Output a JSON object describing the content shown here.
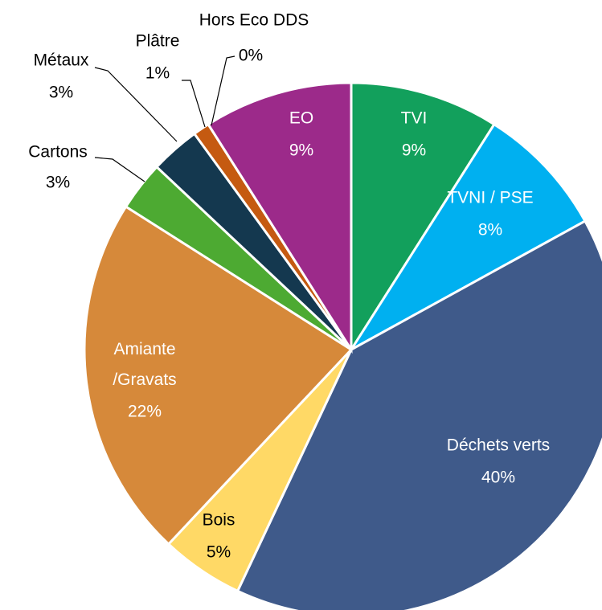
{
  "chart_data": {
    "type": "pie",
    "categories": [
      "TVI",
      "TVNI / PSE",
      "Déchets verts",
      "Bois",
      "Amiante\n/Gravats",
      "Cartons",
      "Métaux",
      "Plâtre",
      "Hors Eco DDS",
      "EO"
    ],
    "values": [
      9,
      8,
      40,
      5,
      22,
      3,
      3,
      1,
      0,
      9
    ],
    "value_labels": [
      "9%",
      "8%",
      "40%",
      "5%",
      "22%",
      "3%",
      "3%",
      "1%",
      "0%",
      "9%"
    ],
    "colors": [
      "#12a05c",
      "#00b0f0",
      "#3f5a8a",
      "#ffd966",
      "#d6893a",
      "#4daa32",
      "#14384f",
      "#c55a11",
      "#1e5631",
      "#9c2a8a"
    ]
  }
}
